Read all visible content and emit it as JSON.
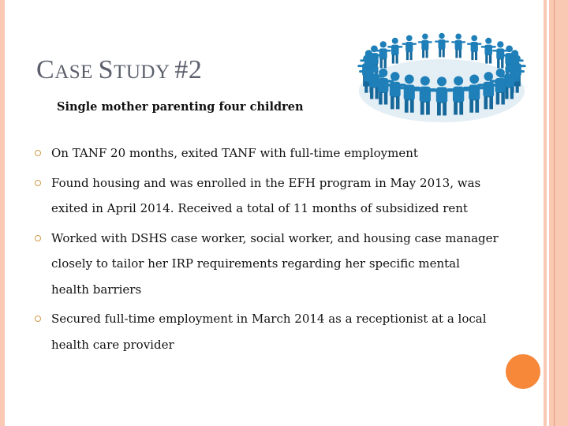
{
  "slide": {
    "title_parts": [
      {
        "cap": "C",
        "rest": "ASE "
      },
      {
        "cap": "S",
        "rest": "TUDY "
      },
      {
        "cap": "#2",
        "rest": ""
      }
    ],
    "subtitle": "Single mother parenting four children",
    "bullets": [
      "On TANF 20 months, exited TANF with full-time employment",
      "Found housing and was enrolled in the EFH program in May 2013, was exited in April 2014.  Received a total of 11 months of subsidized rent",
      "Worked with DSHS case worker, social worker, and housing case manager closely to tailor her IRP requirements regarding her specific mental health barriers",
      "Secured full-time employment in March 2014 as a receptionist at a local health care provider"
    ],
    "image": "people-circle-icon",
    "colors": {
      "border": "#f9c9b3",
      "accent": "#f7883a",
      "bullet": "#d39a4a",
      "title": "#5a5f6b",
      "figures": "#1f7fb8"
    }
  }
}
